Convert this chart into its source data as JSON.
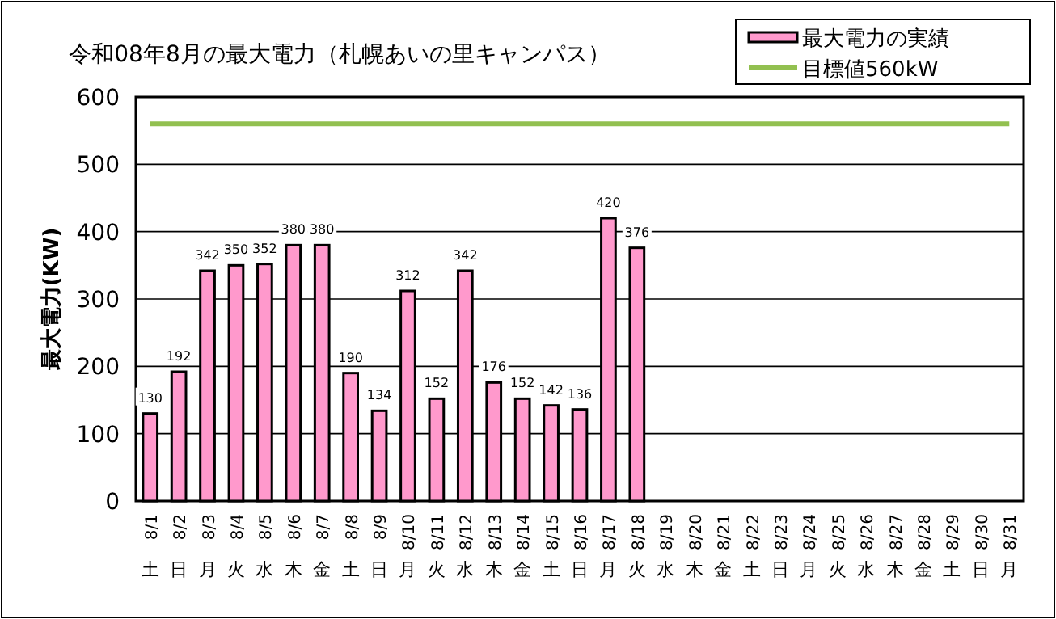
{
  "chart_data": {
    "type": "bar",
    "title": "令和08年8月の最大電力（札幌あいの里キャンパス）",
    "ylabel": "最大電力(KW)",
    "categories": [
      "8/1 土",
      "8/2 日",
      "8/3 月",
      "8/4 火",
      "8/5 水",
      "8/6 木",
      "8/7 金",
      "8/8 土",
      "8/9 日",
      "8/10 月",
      "8/11 火",
      "8/12 水",
      "8/13 木",
      "8/14 金",
      "8/15 土",
      "8/16 日",
      "8/17 月",
      "8/18 火",
      "8/19 水",
      "8/20 木",
      "8/21 金",
      "8/22 土",
      "8/23 日",
      "8/24 月",
      "8/25 火",
      "8/26 水",
      "8/27 木",
      "8/28 金",
      "8/29 土",
      "8/30 日",
      "8/31 月"
    ],
    "series": [
      {
        "name": "最大電力の実績",
        "color": "#ff99cc",
        "values": [
          130,
          192,
          342,
          350,
          352,
          380,
          380,
          190,
          134,
          312,
          152,
          342,
          176,
          152,
          142,
          136,
          420,
          376,
          null,
          null,
          null,
          null,
          null,
          null,
          null,
          null,
          null,
          null,
          null,
          null,
          null
        ],
        "value_labels": [
          "130",
          "192",
          "342",
          "350",
          "352",
          "380",
          "380",
          "190",
          "134",
          "312",
          "152",
          "342",
          "176",
          "152",
          "142",
          "136",
          "420",
          "376",
          null,
          null,
          null,
          null,
          null,
          null,
          null,
          null,
          null,
          null,
          null,
          null,
          null
        ]
      },
      {
        "name": "目標値560kW",
        "type": "line",
        "color": "#92c050",
        "values": [
          560,
          560,
          560,
          560,
          560,
          560,
          560,
          560,
          560,
          560,
          560,
          560,
          560,
          560,
          560,
          560,
          560,
          560,
          560,
          560,
          560,
          560,
          560,
          560,
          560,
          560,
          560,
          560,
          560,
          560,
          560
        ]
      }
    ],
    "ylim": [
      0,
      600
    ],
    "yticks": [
      0,
      100,
      200,
      300,
      400,
      500,
      600
    ],
    "grid": "y",
    "legend": "top right"
  }
}
